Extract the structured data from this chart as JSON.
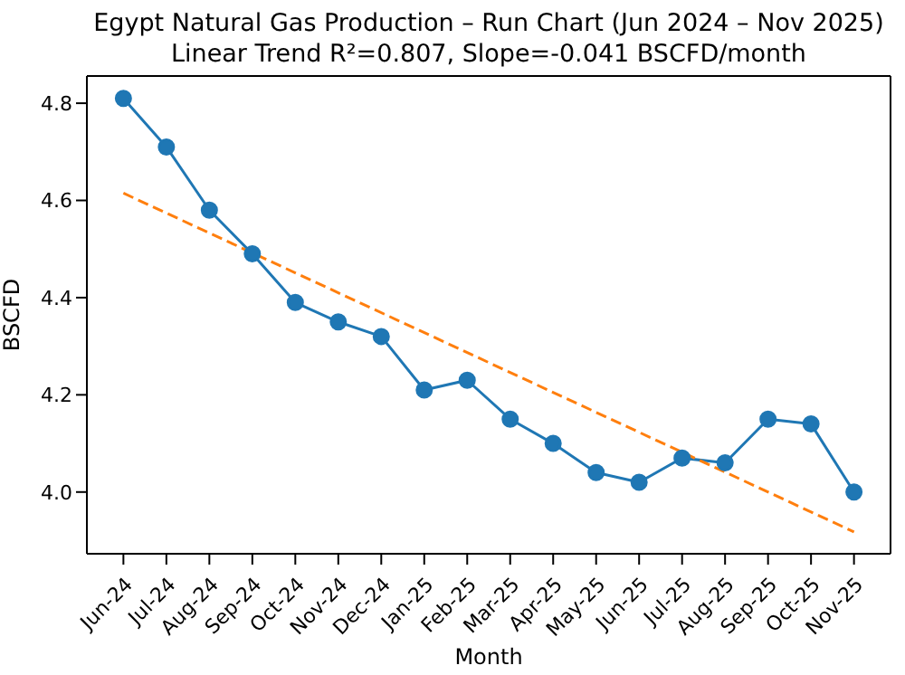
{
  "chart_data": {
    "type": "line",
    "title": "Egypt Natural Gas Production – Run Chart (Jun 2024 – Nov 2025)",
    "subtitle": "Linear Trend R²=0.807, Slope=-0.041 BSCFD/month",
    "xlabel": "Month",
    "ylabel": "BSCFD",
    "categories": [
      "Jun-24",
      "Jul-24",
      "Aug-24",
      "Sep-24",
      "Oct-24",
      "Nov-24",
      "Dec-24",
      "Jan-25",
      "Feb-25",
      "Mar-25",
      "Apr-25",
      "May-25",
      "Jun-25",
      "Jul-25",
      "Aug-25",
      "Sep-25",
      "Oct-25",
      "Nov-25"
    ],
    "series": [
      {
        "color": "#1f77b4",
        "marker": "circle",
        "line_style": "solid",
        "values": [
          4.81,
          4.71,
          4.58,
          4.49,
          4.39,
          4.35,
          4.32,
          4.21,
          4.23,
          4.15,
          4.1,
          4.04,
          4.02,
          4.07,
          4.06,
          4.15,
          4.14,
          4.0
        ]
      },
      {
        "color": "#ff7f0e",
        "marker": "none",
        "line_style": "dashed",
        "values": [
          4.615,
          null,
          null,
          null,
          null,
          null,
          null,
          null,
          null,
          null,
          null,
          null,
          null,
          null,
          null,
          null,
          null,
          3.918
        ]
      }
    ],
    "ylim": [
      3.873,
      4.856
    ],
    "yticks": [
      {
        "value": 4.0,
        "label": "4.0"
      },
      {
        "value": 4.2,
        "label": "4.2"
      },
      {
        "value": 4.4,
        "label": "4.4"
      },
      {
        "value": 4.6,
        "label": "4.6"
      },
      {
        "value": 4.8,
        "label": "4.8"
      }
    ]
  }
}
